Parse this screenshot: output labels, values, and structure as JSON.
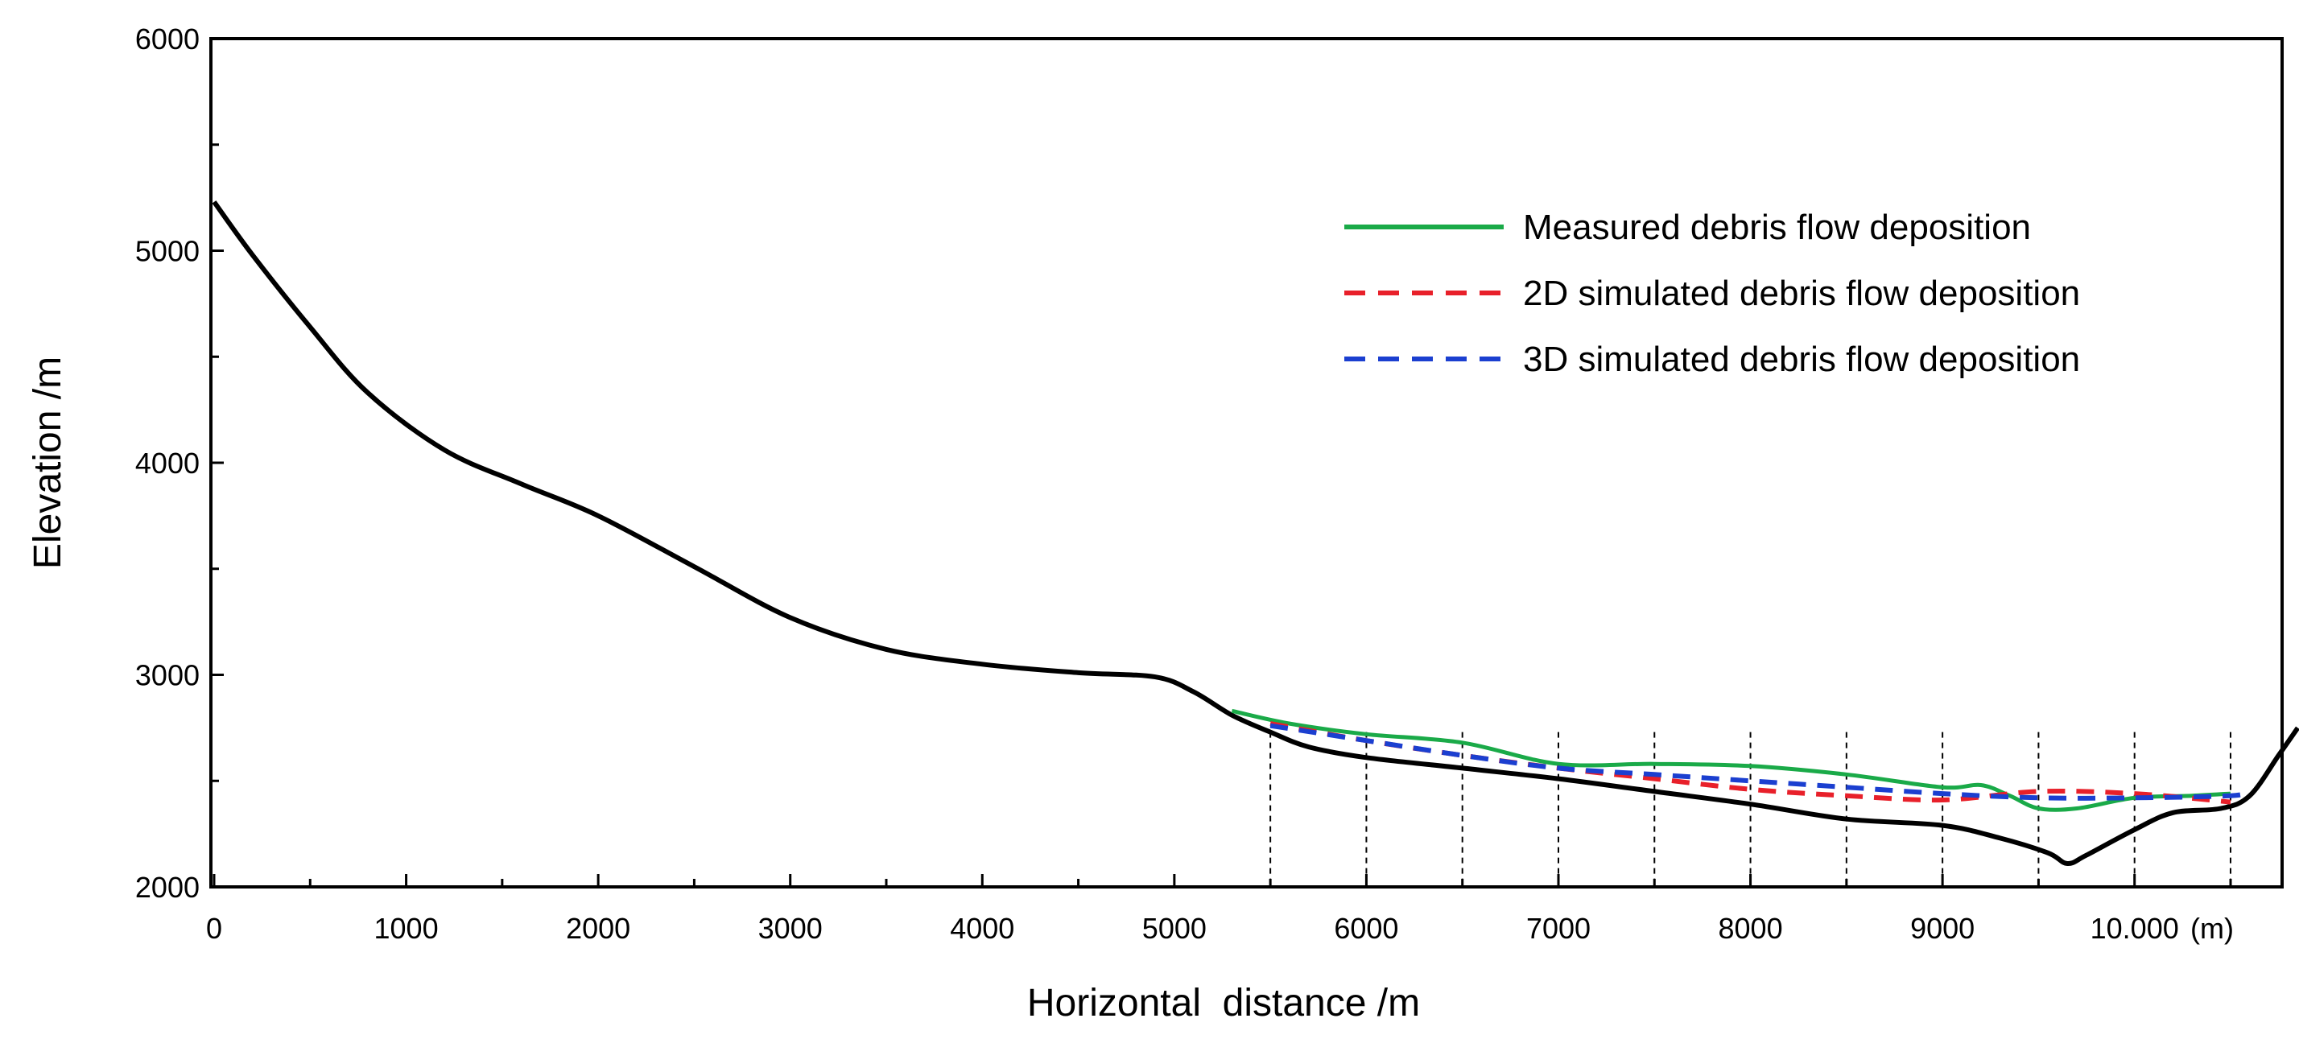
{
  "chart_data": {
    "type": "line",
    "title": "",
    "xlabel": "Horizontal  distance /m",
    "ylabel": "Elevation /m",
    "xlim": [
      0,
      11000
    ],
    "ylim": [
      2000,
      6000
    ],
    "x_ticks": [
      {
        "value": 0,
        "label": "0"
      },
      {
        "value": 1000,
        "label": "1000"
      },
      {
        "value": 2000,
        "label": "2000"
      },
      {
        "value": 3000,
        "label": "3000"
      },
      {
        "value": 4000,
        "label": "4000"
      },
      {
        "value": 5000,
        "label": "5000"
      },
      {
        "value": 6000,
        "label": "6000"
      },
      {
        "value": 7000,
        "label": "7000"
      },
      {
        "value": 8000,
        "label": "8000"
      },
      {
        "value": 9000,
        "label": "9000"
      },
      {
        "value": 10000,
        "label": "10.000"
      }
    ],
    "x_unit_label": "(m)",
    "y_ticks": [
      {
        "value": 2000,
        "label": "2000"
      },
      {
        "value": 3000,
        "label": "3000"
      },
      {
        "value": 4000,
        "label": "4000"
      },
      {
        "value": 5000,
        "label": "5000"
      },
      {
        "value": 6000,
        "label": "6000"
      }
    ],
    "guide_lines_x": [
      5500,
      6000,
      6500,
      7000,
      7500,
      8000,
      8500,
      9000,
      9500,
      10000,
      10500
    ],
    "series": [
      {
        "name": "Terrain profile",
        "color": "#000000",
        "dashed": false,
        "in_legend": false,
        "points": [
          [
            0,
            5230
          ],
          [
            200,
            4980
          ],
          [
            500,
            4640
          ],
          [
            800,
            4330
          ],
          [
            1200,
            4060
          ],
          [
            1600,
            3900
          ],
          [
            2000,
            3750
          ],
          [
            2500,
            3510
          ],
          [
            3000,
            3270
          ],
          [
            3500,
            3120
          ],
          [
            4000,
            3050
          ],
          [
            4500,
            3010
          ],
          [
            4900,
            2990
          ],
          [
            5100,
            2920
          ],
          [
            5300,
            2810
          ],
          [
            5500,
            2730
          ],
          [
            5700,
            2660
          ],
          [
            6000,
            2610
          ],
          [
            6500,
            2560
          ],
          [
            7000,
            2510
          ],
          [
            7500,
            2450
          ],
          [
            8000,
            2390
          ],
          [
            8500,
            2320
          ],
          [
            9000,
            2290
          ],
          [
            9300,
            2230
          ],
          [
            9550,
            2160
          ],
          [
            9650,
            2110
          ],
          [
            9750,
            2150
          ],
          [
            10000,
            2270
          ],
          [
            10200,
            2350
          ],
          [
            10450,
            2370
          ],
          [
            10600,
            2430
          ],
          [
            10750,
            2620
          ],
          [
            10850,
            2750
          ]
        ]
      },
      {
        "name": "Measured debris flow deposition",
        "color": "#1aaa48",
        "dashed": false,
        "in_legend": true,
        "points": [
          [
            5300,
            2830
          ],
          [
            5600,
            2770
          ],
          [
            6000,
            2720
          ],
          [
            6500,
            2680
          ],
          [
            7000,
            2580
          ],
          [
            7500,
            2580
          ],
          [
            8000,
            2570
          ],
          [
            8500,
            2530
          ],
          [
            9000,
            2470
          ],
          [
            9200,
            2480
          ],
          [
            9350,
            2430
          ],
          [
            9500,
            2370
          ],
          [
            9700,
            2370
          ],
          [
            10000,
            2420
          ],
          [
            10300,
            2430
          ],
          [
            10500,
            2440
          ]
        ]
      },
      {
        "name": "2D simulated debris flow deposition",
        "color": "#e8202a",
        "dashed": true,
        "in_legend": true,
        "points": [
          [
            5500,
            2770
          ],
          [
            6000,
            2690
          ],
          [
            6500,
            2620
          ],
          [
            7000,
            2560
          ],
          [
            7500,
            2510
          ],
          [
            8000,
            2460
          ],
          [
            8500,
            2430
          ],
          [
            9000,
            2410
          ],
          [
            9500,
            2450
          ],
          [
            10000,
            2440
          ],
          [
            10500,
            2400
          ]
        ]
      },
      {
        "name": "3D simulated debris flow deposition",
        "color": "#1b3fd0",
        "dashed": true,
        "in_legend": true,
        "points": [
          [
            5500,
            2760
          ],
          [
            6000,
            2690
          ],
          [
            6500,
            2620
          ],
          [
            7000,
            2560
          ],
          [
            7500,
            2530
          ],
          [
            8000,
            2500
          ],
          [
            8500,
            2470
          ],
          [
            9000,
            2440
          ],
          [
            9500,
            2420
          ],
          [
            10000,
            2420
          ],
          [
            10500,
            2430
          ],
          [
            10600,
            2450
          ]
        ]
      }
    ]
  }
}
